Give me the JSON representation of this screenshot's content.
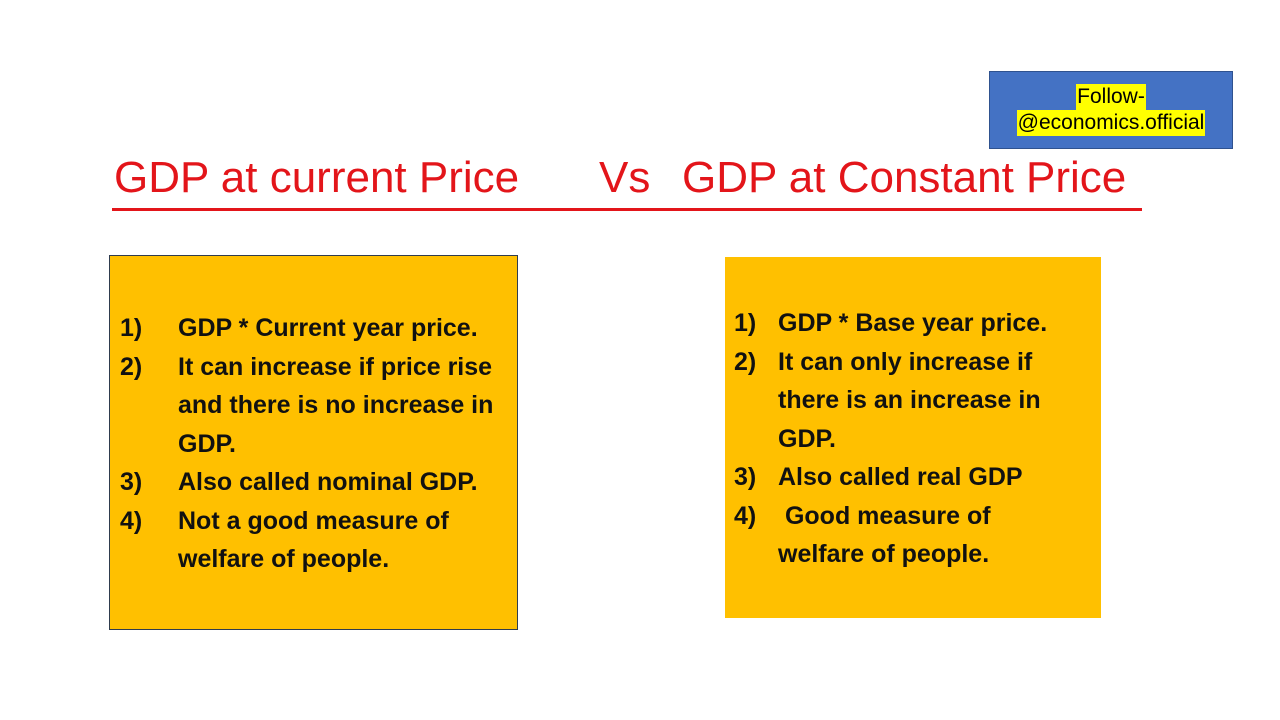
{
  "follow": {
    "line1": "Follow-",
    "line2": "@economics.official"
  },
  "title": {
    "left": "GDP at current Price",
    "vs": "Vs",
    "right": "GDP at Constant Price"
  },
  "left_box": {
    "items": [
      {
        "num": "1)",
        "text": "GDP * Current year price."
      },
      {
        "num": "2)",
        "text": "It can increase if price rise and there is no increase in GDP."
      },
      {
        "num": "3)",
        "text": "Also called nominal GDP."
      },
      {
        "num": "4)",
        "text": "Not a good measure of welfare of people."
      }
    ]
  },
  "right_box": {
    "items": [
      {
        "num": "1)",
        "text": "GDP * Base year price."
      },
      {
        "num": "2)",
        "text": "It can only increase if there is an increase in GDP."
      },
      {
        "num": "3)",
        "text": "Also called real GDP"
      },
      {
        "num": "4)",
        "text": " Good measure of welfare of people."
      }
    ]
  },
  "colors": {
    "title": "#e3151a",
    "box": "#ffc000",
    "follow_bg": "#4472c4",
    "follow_highlight": "#ffff00"
  }
}
